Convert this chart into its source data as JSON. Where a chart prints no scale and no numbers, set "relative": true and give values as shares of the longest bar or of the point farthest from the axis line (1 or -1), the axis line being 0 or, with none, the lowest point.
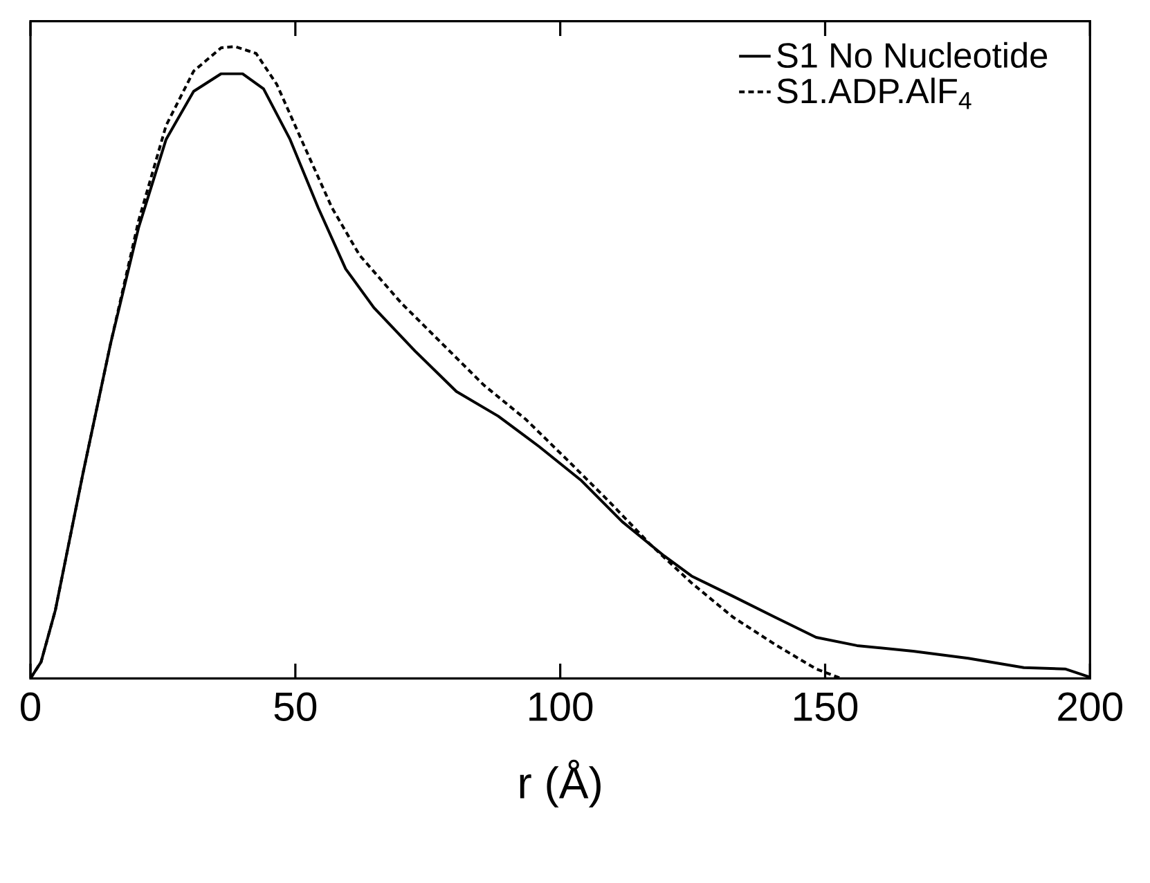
{
  "chart_data": {
    "type": "line",
    "xlabel": "r (Å)",
    "relative": true,
    "xlim": [
      0,
      200
    ],
    "xticks": [
      0,
      50,
      100,
      150,
      200
    ],
    "legend": "top right",
    "marker": "none",
    "grid": false,
    "series": [
      {
        "name": "S1 No Nucleotide",
        "color": "#000000",
        "line_style": "solid",
        "x": [
          0,
          2,
          4.7,
          9.9,
          15.1,
          20.4,
          25.6,
          30.8,
          36,
          40,
          44,
          49,
          54.3,
          59.5,
          64.8,
          72.6,
          80.4,
          88.3,
          96,
          104,
          111.7,
          119.6,
          124.8,
          132.6,
          140.5,
          148.3,
          156,
          166.6,
          177,
          187.5,
          195.3,
          200
        ],
        "values": [
          0,
          0.026,
          0.108,
          0.324,
          0.529,
          0.713,
          0.853,
          0.929,
          0.957,
          0.957,
          0.933,
          0.853,
          0.745,
          0.648,
          0.587,
          0.518,
          0.454,
          0.415,
          0.367,
          0.313,
          0.248,
          0.194,
          0.162,
          0.13,
          0.097,
          0.065,
          0.052,
          0.043,
          0.032,
          0.017,
          0.015,
          0.002
        ]
      },
      {
        "name": "S1.ADP.AlF$_{4}$",
        "color": "#000000",
        "line_style": "dotted",
        "x": [
          0,
          2,
          4.7,
          9.9,
          15.1,
          20.4,
          25.6,
          30.8,
          36,
          38.6,
          42.6,
          46.5,
          51.7,
          56.9,
          62.1,
          70,
          77.8,
          85.6,
          93.5,
          101.3,
          109.1,
          117,
          124.8,
          132.6,
          140.5,
          148.3,
          153
        ],
        "values": [
          0,
          0.026,
          0.108,
          0.324,
          0.529,
          0.724,
          0.875,
          0.961,
          0.998,
          1,
          0.989,
          0.94,
          0.842,
          0.745,
          0.67,
          0.594,
          0.529,
          0.464,
          0.41,
          0.346,
          0.281,
          0.212,
          0.151,
          0.097,
          0.054,
          0.015,
          0
        ]
      }
    ]
  }
}
